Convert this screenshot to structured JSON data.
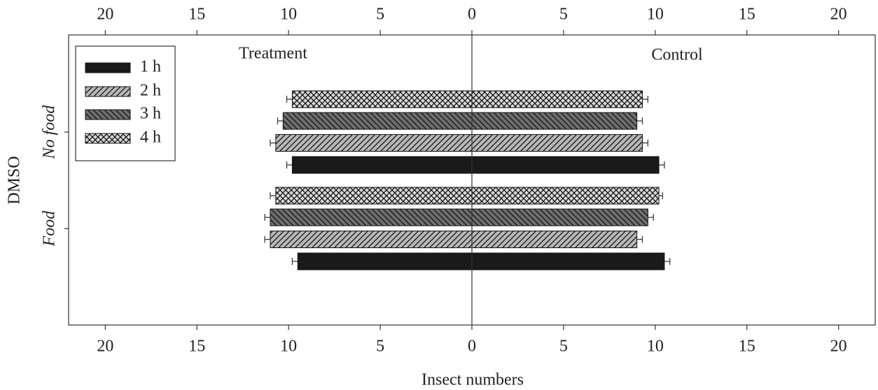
{
  "chart_data": {
    "type": "butterfly-bar",
    "left_label": "Treatment",
    "right_label": "Control",
    "xlabel": "Insect numbers",
    "ylabel": "DMSO",
    "categories": [
      "No food",
      "Food"
    ],
    "xlim": [
      -22,
      22
    ],
    "xticks": [
      {
        "value": -20,
        "label": "20"
      },
      {
        "value": -15,
        "label": "15"
      },
      {
        "value": -10,
        "label": "10"
      },
      {
        "value": -5,
        "label": "5"
      },
      0,
      5,
      10,
      15,
      20
    ],
    "legend": "upper left",
    "series": [
      {
        "name": "1 h",
        "color": "#1a1a1a",
        "hatch": "none",
        "treatment": [
          9.8,
          9.5
        ],
        "treatment_error": [
          0.3,
          0.3
        ],
        "control": [
          10.2,
          10.5
        ],
        "control_error": [
          0.3,
          0.3
        ]
      },
      {
        "name": "2 h",
        "color": "#b8b8b8",
        "hatch": "/",
        "treatment": [
          10.7,
          11.0
        ],
        "treatment_error": [
          0.3,
          0.3
        ],
        "control": [
          9.3,
          9.0
        ],
        "control_error": [
          0.3,
          0.3
        ]
      },
      {
        "name": "3 h",
        "color": "#6e6e6e",
        "hatch": "\\",
        "treatment": [
          10.3,
          11.0
        ],
        "treatment_error": [
          0.3,
          0.3
        ],
        "control": [
          9.0,
          9.6
        ],
        "control_error": [
          0.3,
          0.3
        ]
      },
      {
        "name": "4 h",
        "color": "#d8d8d8",
        "hatch": "x",
        "treatment": [
          9.8,
          10.7
        ],
        "treatment_error": [
          0.3,
          0.3
        ],
        "control": [
          9.3,
          10.2
        ],
        "control_error": [
          0.3,
          0.2
        ]
      }
    ]
  }
}
